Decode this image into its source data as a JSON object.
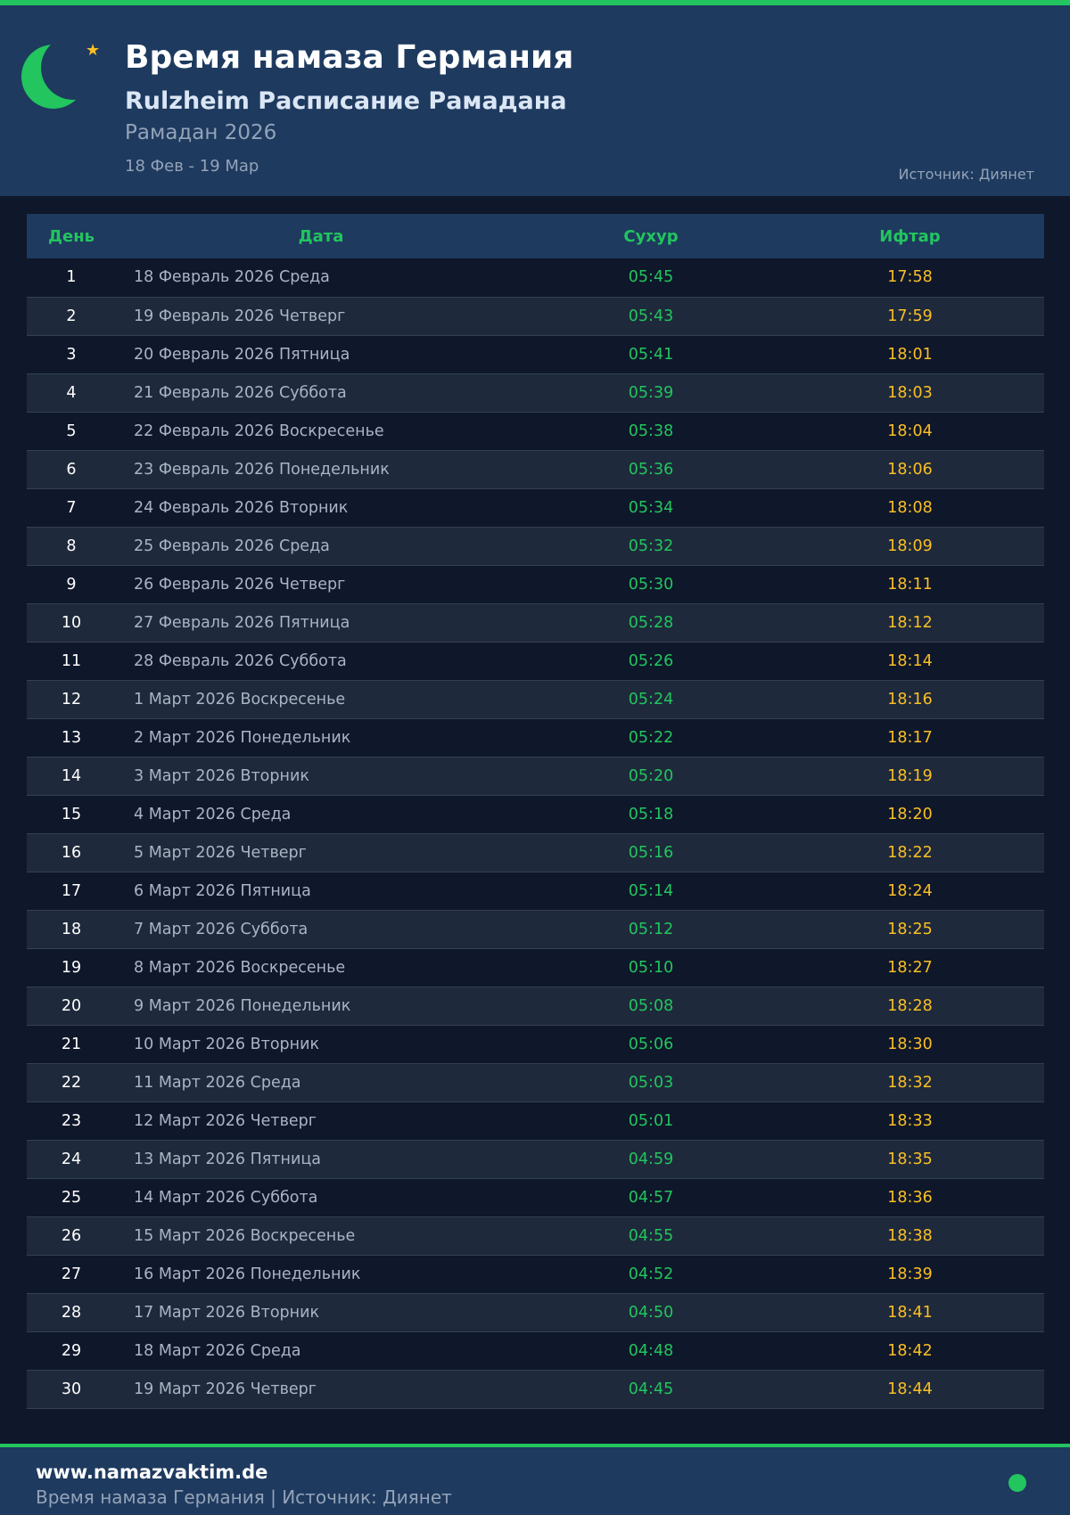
{
  "header": {
    "title": "Время намаза Германия",
    "subtitle": "Rulzheim Расписание Рамадана",
    "year": "Рамадан 2026",
    "range": "18 Фев - 19 Мар",
    "source": "Источник: Диянет"
  },
  "colors": {
    "accent": "#22c55e",
    "iftar": "#fbbf24",
    "header_bg": "#1e3a5f",
    "page_bg": "#0f172a"
  },
  "table": {
    "columns": [
      "День",
      "Дата",
      "Сухур",
      "Ифтар"
    ],
    "rows": [
      [
        "1",
        "18 Февраль 2026 Среда",
        "05:45",
        "17:58"
      ],
      [
        "2",
        "19 Февраль 2026 Четверг",
        "05:43",
        "17:59"
      ],
      [
        "3",
        "20 Февраль 2026 Пятница",
        "05:41",
        "18:01"
      ],
      [
        "4",
        "21 Февраль 2026 Суббота",
        "05:39",
        "18:03"
      ],
      [
        "5",
        "22 Февраль 2026 Воскресенье",
        "05:38",
        "18:04"
      ],
      [
        "6",
        "23 Февраль 2026 Понедельник",
        "05:36",
        "18:06"
      ],
      [
        "7",
        "24 Февраль 2026 Вторник",
        "05:34",
        "18:08"
      ],
      [
        "8",
        "25 Февраль 2026 Среда",
        "05:32",
        "18:09"
      ],
      [
        "9",
        "26 Февраль 2026 Четверг",
        "05:30",
        "18:11"
      ],
      [
        "10",
        "27 Февраль 2026 Пятница",
        "05:28",
        "18:12"
      ],
      [
        "11",
        "28 Февраль 2026 Суббота",
        "05:26",
        "18:14"
      ],
      [
        "12",
        "1 Март 2026 Воскресенье",
        "05:24",
        "18:16"
      ],
      [
        "13",
        "2 Март 2026 Понедельник",
        "05:22",
        "18:17"
      ],
      [
        "14",
        "3 Март 2026 Вторник",
        "05:20",
        "18:19"
      ],
      [
        "15",
        "4 Март 2026 Среда",
        "05:18",
        "18:20"
      ],
      [
        "16",
        "5 Март 2026 Четверг",
        "05:16",
        "18:22"
      ],
      [
        "17",
        "6 Март 2026 Пятница",
        "05:14",
        "18:24"
      ],
      [
        "18",
        "7 Март 2026 Суббота",
        "05:12",
        "18:25"
      ],
      [
        "19",
        "8 Март 2026 Воскресенье",
        "05:10",
        "18:27"
      ],
      [
        "20",
        "9 Март 2026 Понедельник",
        "05:08",
        "18:28"
      ],
      [
        "21",
        "10 Март 2026 Вторник",
        "05:06",
        "18:30"
      ],
      [
        "22",
        "11 Март 2026 Среда",
        "05:03",
        "18:32"
      ],
      [
        "23",
        "12 Март 2026 Четверг",
        "05:01",
        "18:33"
      ],
      [
        "24",
        "13 Март 2026 Пятница",
        "04:59",
        "18:35"
      ],
      [
        "25",
        "14 Март 2026 Суббота",
        "04:57",
        "18:36"
      ],
      [
        "26",
        "15 Март 2026 Воскресенье",
        "04:55",
        "18:38"
      ],
      [
        "27",
        "16 Март 2026 Понедельник",
        "04:52",
        "18:39"
      ],
      [
        "28",
        "17 Март 2026 Вторник",
        "04:50",
        "18:41"
      ],
      [
        "29",
        "18 Март 2026 Среда",
        "04:48",
        "18:42"
      ],
      [
        "30",
        "19 Март 2026 Четверг",
        "04:45",
        "18:44"
      ]
    ]
  },
  "footer": {
    "site": "www.namazvaktim.de",
    "text": "Время намаза Германия | Источник: Диянет"
  }
}
